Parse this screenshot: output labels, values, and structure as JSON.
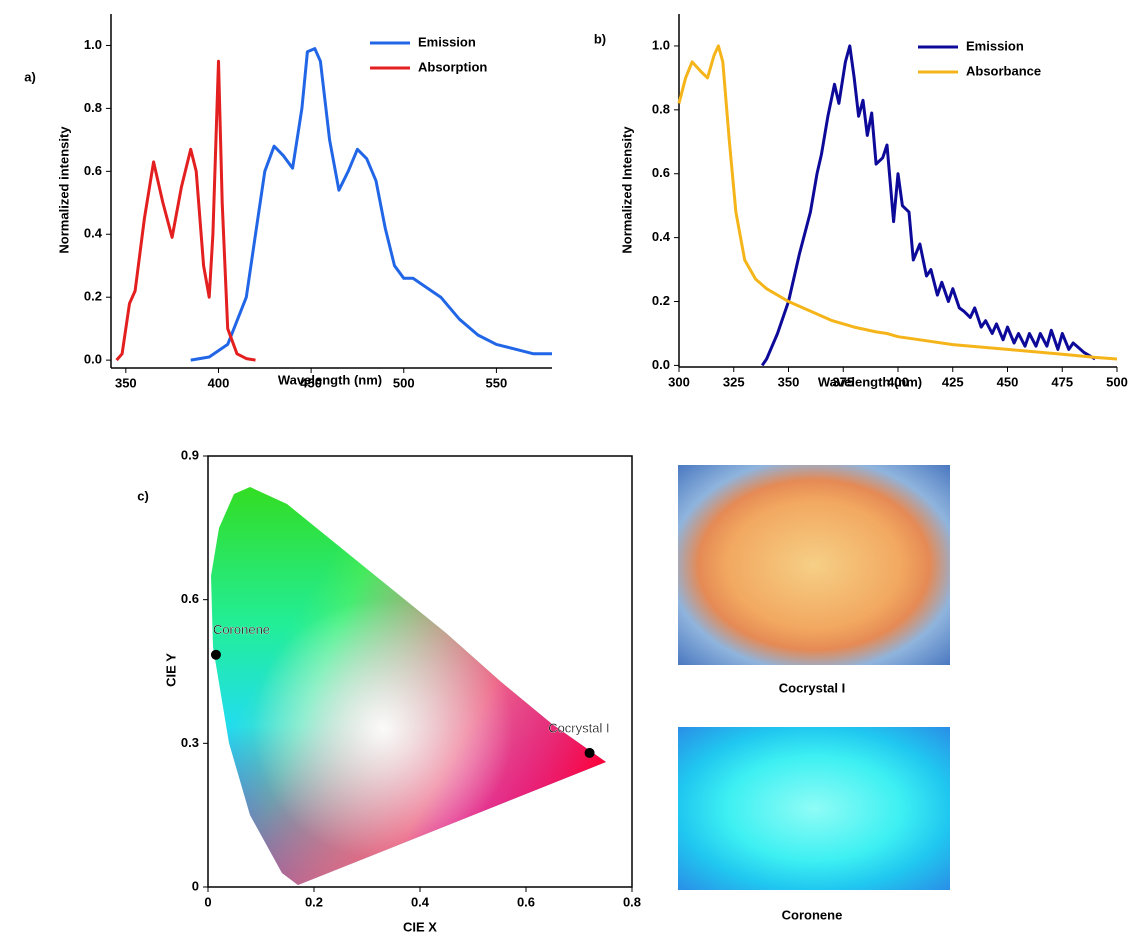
{
  "chart_data": [
    {
      "type": "line",
      "panel_label": "a)",
      "xlabel": "Wavelength (nm)",
      "ylabel": "Normalized intensity",
      "xlim": [
        342,
        580
      ],
      "ylim": [
        -0.025,
        1.1
      ],
      "xticks": [
        350,
        400,
        450,
        500,
        550
      ],
      "yticks": [
        {
          "value": 0,
          "label": "0.0"
        },
        0.2,
        0.4,
        0.6,
        0.8,
        {
          "value": 1,
          "label": "1.0"
        }
      ],
      "legend": "upper-right",
      "series": [
        {
          "name": "Emission",
          "color": "#2166e6",
          "x": [
            385,
            395,
            405,
            415,
            420,
            425,
            430,
            435,
            440,
            445,
            448,
            452,
            455,
            460,
            465,
            470,
            475,
            480,
            485,
            490,
            495,
            500,
            505,
            510,
            520,
            530,
            540,
            550,
            560,
            570,
            580
          ],
          "values": [
            0.0,
            0.01,
            0.05,
            0.2,
            0.4,
            0.6,
            0.68,
            0.65,
            0.61,
            0.8,
            0.98,
            0.99,
            0.95,
            0.7,
            0.54,
            0.6,
            0.67,
            0.64,
            0.57,
            0.42,
            0.3,
            0.26,
            0.26,
            0.24,
            0.2,
            0.13,
            0.08,
            0.05,
            0.035,
            0.02,
            0.02
          ]
        },
        {
          "name": "Absorption",
          "color": "#e31f1f",
          "x": [
            345,
            348,
            352,
            355,
            360,
            365,
            370,
            375,
            380,
            385,
            388,
            392,
            395,
            397,
            400,
            402,
            405,
            410,
            415,
            420
          ],
          "values": [
            0.0,
            0.02,
            0.18,
            0.22,
            0.45,
            0.63,
            0.5,
            0.39,
            0.55,
            0.67,
            0.6,
            0.3,
            0.2,
            0.4,
            0.95,
            0.5,
            0.1,
            0.02,
            0.005,
            0.0
          ]
        }
      ]
    },
    {
      "type": "line",
      "panel_label": "b)",
      "xlabel": "Wavelength (nm)",
      "ylabel": "Normalized Intensity",
      "xlim": [
        300,
        500
      ],
      "ylim": [
        -0.005,
        1.1
      ],
      "xticks": [
        300,
        325,
        350,
        375,
        400,
        425,
        450,
        475,
        500
      ],
      "yticks": [
        {
          "value": 0,
          "label": "0.0"
        },
        0.2,
        0.4,
        0.6,
        0.8,
        {
          "value": 1,
          "label": "1.0"
        }
      ],
      "legend": "upper-right",
      "series": [
        {
          "name": "Emission",
          "color": "#0d0a9a",
          "x": [
            338,
            340,
            345,
            350,
            355,
            360,
            363,
            365,
            368,
            371,
            373,
            376,
            378,
            380,
            382,
            384,
            386,
            388,
            390,
            393,
            395,
            398,
            400,
            402,
            405,
            407,
            410,
            413,
            415,
            418,
            420,
            423,
            425,
            428,
            430,
            433,
            435,
            438,
            440,
            443,
            445,
            448,
            450,
            453,
            455,
            458,
            460,
            463,
            465,
            468,
            470,
            473,
            475,
            478,
            480,
            485,
            490
          ],
          "values": [
            0.0,
            0.02,
            0.1,
            0.2,
            0.35,
            0.48,
            0.6,
            0.66,
            0.78,
            0.88,
            0.82,
            0.95,
            1.0,
            0.9,
            0.78,
            0.83,
            0.72,
            0.79,
            0.63,
            0.65,
            0.69,
            0.45,
            0.6,
            0.5,
            0.48,
            0.33,
            0.38,
            0.28,
            0.3,
            0.22,
            0.26,
            0.2,
            0.24,
            0.18,
            0.17,
            0.15,
            0.18,
            0.12,
            0.14,
            0.1,
            0.13,
            0.08,
            0.12,
            0.07,
            0.1,
            0.06,
            0.1,
            0.06,
            0.1,
            0.06,
            0.11,
            0.05,
            0.1,
            0.05,
            0.07,
            0.04,
            0.02
          ]
        },
        {
          "name": "Absorbance",
          "color": "#f5b51a",
          "x": [
            300,
            303,
            306,
            310,
            313,
            316,
            318,
            320,
            323,
            326,
            330,
            335,
            340,
            350,
            360,
            370,
            380,
            390,
            395,
            400,
            410,
            425,
            450,
            475,
            490,
            500
          ],
          "values": [
            0.82,
            0.9,
            0.95,
            0.92,
            0.9,
            0.97,
            1.0,
            0.95,
            0.7,
            0.48,
            0.33,
            0.27,
            0.24,
            0.2,
            0.17,
            0.14,
            0.12,
            0.105,
            0.1,
            0.09,
            0.08,
            0.065,
            0.05,
            0.035,
            0.025,
            0.02
          ]
        }
      ]
    },
    {
      "type": "scatter",
      "panel_label": "c)",
      "xlabel": "CIE X",
      "ylabel": "CIE Y",
      "xlim": [
        0,
        0.8
      ],
      "ylim": [
        0,
        0.9
      ],
      "xticks": [
        0,
        0.2,
        0.4,
        0.6,
        0.8
      ],
      "yticks": [
        0,
        0.3,
        0.6,
        0.9
      ],
      "series": [
        {
          "name": "Coronene",
          "color": "#000000",
          "x": [
            0.015
          ],
          "values": [
            0.485
          ]
        },
        {
          "name": "Cocrystal I",
          "color": "#000000",
          "x": [
            0.72
          ],
          "values": [
            0.28
          ]
        }
      ]
    }
  ],
  "photos": [
    {
      "caption": "Cocrystal I"
    },
    {
      "caption": "Coronene"
    }
  ]
}
